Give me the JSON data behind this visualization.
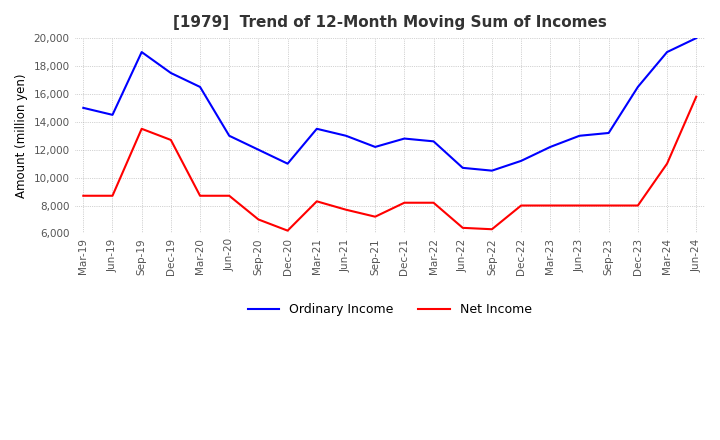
{
  "title": "[1979]  Trend of 12-Month Moving Sum of Incomes",
  "ylabel": "Amount (million yen)",
  "ylim": [
    6000,
    20000
  ],
  "yticks": [
    6000,
    8000,
    10000,
    12000,
    14000,
    16000,
    18000,
    20000
  ],
  "background_color": "#ffffff",
  "grid_color": "#aaaaaa",
  "ordinary_income_color": "#0000ff",
  "net_income_color": "#ff0000",
  "x_labels": [
    "Mar-19",
    "Jun-19",
    "Sep-19",
    "Dec-19",
    "Mar-20",
    "Jun-20",
    "Sep-20",
    "Dec-20",
    "Mar-21",
    "Jun-21",
    "Sep-21",
    "Dec-21",
    "Mar-22",
    "Jun-22",
    "Sep-22",
    "Dec-22",
    "Mar-23",
    "Jun-23",
    "Sep-23",
    "Dec-23",
    "Mar-24",
    "Jun-24"
  ],
  "ordinary_income": [
    15000,
    14500,
    19000,
    17500,
    16500,
    13000,
    12000,
    11000,
    13500,
    13000,
    12200,
    12800,
    12600,
    10700,
    10500,
    11200,
    12200,
    13000,
    13200,
    16500,
    19000,
    20000
  ],
  "net_income": [
    8700,
    8700,
    13500,
    12700,
    8700,
    8700,
    7000,
    6200,
    8300,
    7700,
    7200,
    8200,
    8200,
    6400,
    6300,
    8000,
    8000,
    8000,
    8000,
    8000,
    11000,
    15800
  ]
}
